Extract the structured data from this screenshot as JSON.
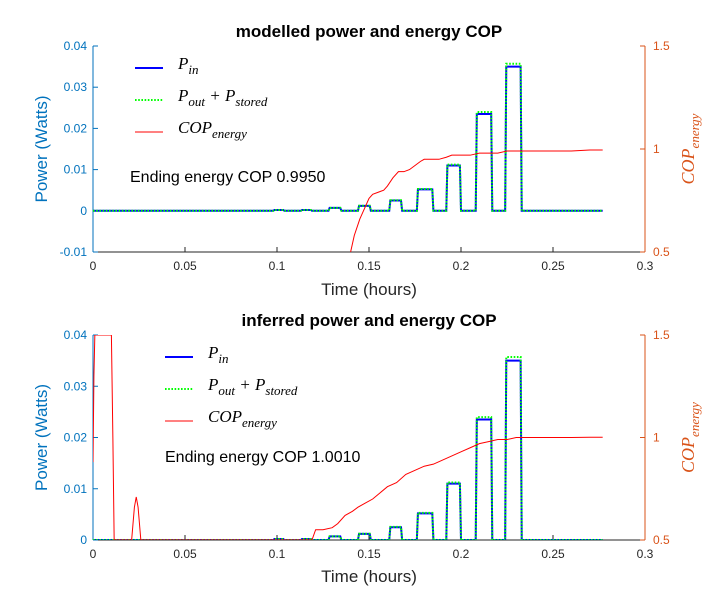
{
  "colors": {
    "left_axis": "#0072BD",
    "right_axis": "#D95319",
    "p_in": "#0000FF",
    "p_out": "#00FF00",
    "cop": "#FF0000",
    "axis_x": "#262626"
  },
  "chart_data": [
    {
      "type": "line",
      "title": "modelled power and energy COP",
      "xlabel": "Time (hours)",
      "ylabel": "Power (Watts)",
      "ylabel_right": {
        "main": "COP",
        "sub": "energy"
      },
      "xlim": [
        0,
        0.3
      ],
      "ylim": [
        -0.01,
        0.04
      ],
      "ylim_right": [
        0.5,
        1.5
      ],
      "x_ticks": [
        "0",
        "0.05",
        "0.1",
        "0.15",
        "0.2",
        "0.25",
        "0.3"
      ],
      "y_ticks": [
        "-0.01",
        "0",
        "0.01",
        "0.02",
        "0.03",
        "0.04"
      ],
      "y_ticks_right": [
        "0.5",
        "1",
        "1.5"
      ],
      "annotation": "Ending energy COP 0.9950",
      "legend": [
        {
          "main": "P",
          "sub": "in"
        },
        {
          "main": "P",
          "sub": "out",
          "op": " + ",
          "main2": "P",
          "sub2": "stored"
        },
        {
          "main": "COP",
          "sub": "energy"
        }
      ],
      "pulses": [
        {
          "t0": 0.098,
          "t1": 0.104,
          "h": 0.0002
        },
        {
          "t0": 0.113,
          "t1": 0.119,
          "h": 0.0002
        },
        {
          "t0": 0.128,
          "t1": 0.135,
          "h": 0.0007
        },
        {
          "t0": 0.144,
          "t1": 0.151,
          "h": 0.0012
        },
        {
          "t0": 0.161,
          "t1": 0.168,
          "h": 0.0025
        },
        {
          "t0": 0.176,
          "t1": 0.185,
          "h": 0.0052
        },
        {
          "t0": 0.192,
          "t1": 0.2,
          "h": 0.011
        },
        {
          "t0": 0.208,
          "t1": 0.217,
          "h": 0.0235
        },
        {
          "t0": 0.224,
          "t1": 0.233,
          "h": 0.035
        }
      ],
      "x_end": 0.277,
      "series": [
        {
          "key": "cop",
          "x": [
            0.14,
            0.142,
            0.145,
            0.148,
            0.15,
            0.152,
            0.155,
            0.158,
            0.16,
            0.163,
            0.166,
            0.169,
            0.172,
            0.175,
            0.178,
            0.18,
            0.184,
            0.188,
            0.192,
            0.195,
            0.2,
            0.205,
            0.21,
            0.215,
            0.22,
            0.225,
            0.23,
            0.24,
            0.25,
            0.26,
            0.27,
            0.277
          ],
          "y": [
            0.5,
            0.58,
            0.66,
            0.72,
            0.76,
            0.78,
            0.79,
            0.8,
            0.82,
            0.86,
            0.89,
            0.89,
            0.9,
            0.92,
            0.94,
            0.95,
            0.95,
            0.95,
            0.96,
            0.97,
            0.97,
            0.97,
            0.98,
            0.98,
            0.98,
            0.99,
            0.99,
            0.99,
            0.99,
            0.99,
            0.995,
            0.995
          ]
        }
      ]
    },
    {
      "type": "line",
      "title": "inferred power and energy COP",
      "xlabel": "Time (hours)",
      "ylabel": "Power (Watts)",
      "ylabel_right": {
        "main": "COP",
        "sub": "energy"
      },
      "xlim": [
        0,
        0.3
      ],
      "ylim": [
        0,
        0.04
      ],
      "ylim_right": [
        0.5,
        1.5
      ],
      "x_ticks": [
        "0",
        "0.05",
        "0.1",
        "0.15",
        "0.2",
        "0.25",
        "0.3"
      ],
      "y_ticks": [
        "0",
        "0.01",
        "0.02",
        "0.03",
        "0.04"
      ],
      "y_ticks_right": [
        "0.5",
        "1",
        "1.5"
      ],
      "annotation": "Ending energy COP 1.0010",
      "legend": [
        {
          "main": "P",
          "sub": "in"
        },
        {
          "main": "P",
          "sub": "out",
          "op": " + ",
          "main2": "P",
          "sub2": "stored"
        },
        {
          "main": "COP",
          "sub": "energy"
        }
      ],
      "pulses": [
        {
          "t0": 0.098,
          "t1": 0.104,
          "h": 0.0002
        },
        {
          "t0": 0.113,
          "t1": 0.119,
          "h": 0.0002
        },
        {
          "t0": 0.128,
          "t1": 0.135,
          "h": 0.0007
        },
        {
          "t0": 0.144,
          "t1": 0.151,
          "h": 0.0012
        },
        {
          "t0": 0.161,
          "t1": 0.168,
          "h": 0.0025
        },
        {
          "t0": 0.176,
          "t1": 0.185,
          "h": 0.0052
        },
        {
          "t0": 0.192,
          "t1": 0.2,
          "h": 0.011
        },
        {
          "t0": 0.208,
          "t1": 0.217,
          "h": 0.0235
        },
        {
          "t0": 0.224,
          "t1": 0.233,
          "h": 0.035
        }
      ],
      "x_end": 0.277,
      "series": [
        {
          "key": "cop",
          "x": [
            0.0,
            0.0005,
            0.001,
            0.0015,
            0.002,
            0.003,
            0.004,
            0.005,
            0.006,
            0.007,
            0.008,
            0.009,
            0.01,
            0.0108,
            0.0115,
            0.021,
            0.0225,
            0.0235,
            0.0245,
            0.026,
            0.0275,
            0.028,
            0.119,
            0.121,
            0.125,
            0.13,
            0.133,
            0.137,
            0.141,
            0.144,
            0.148,
            0.152,
            0.156,
            0.16,
            0.165,
            0.17,
            0.175,
            0.18,
            0.185,
            0.19,
            0.195,
            0.2,
            0.205,
            0.21,
            0.215,
            0.22,
            0.225,
            0.23,
            0.24,
            0.25,
            0.26,
            0.27,
            0.277
          ],
          "y": [
            0.88,
            1.3,
            1.5,
            1.5,
            1.5,
            1.5,
            1.5,
            1.5,
            1.5,
            1.5,
            1.5,
            1.5,
            1.5,
            1.0,
            0.5,
            0.5,
            0.66,
            0.71,
            0.66,
            0.5,
            0.5,
            0.5,
            0.5,
            0.55,
            0.55,
            0.56,
            0.58,
            0.62,
            0.64,
            0.66,
            0.68,
            0.7,
            0.73,
            0.76,
            0.78,
            0.82,
            0.84,
            0.86,
            0.87,
            0.89,
            0.91,
            0.93,
            0.95,
            0.97,
            0.98,
            0.99,
            0.99,
            1.0,
            1.0,
            1.0,
            1.0,
            1.001,
            1.001
          ]
        }
      ]
    }
  ]
}
